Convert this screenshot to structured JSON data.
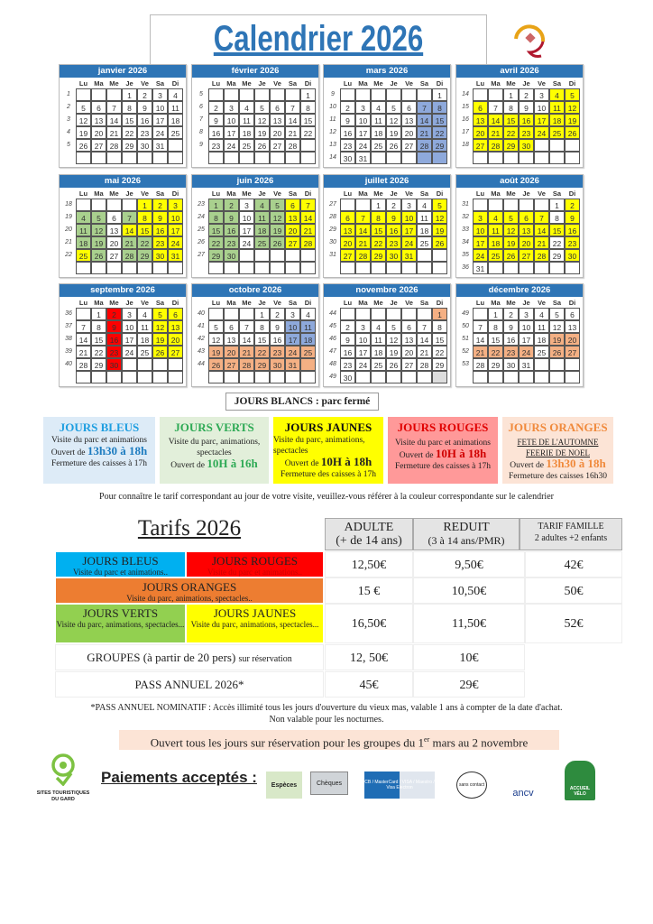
{
  "title": "Calendrier 2026",
  "dow": [
    "Lu",
    "Ma",
    "Me",
    "Je",
    "Ve",
    "Sa",
    "Di"
  ],
  "colors": {
    "w": "#ffffff",
    "b": "#8EA9DB",
    "g": "#A9D08E",
    "y": "#FFFF00",
    "r": "#FF0000",
    "o": "#F4B084",
    "l": "#DDDDDD",
    "header": "#2E75B6"
  },
  "months": [
    {
      "name": "janvier 2026",
      "weeks": [
        [
          "1",
          [
            "",
            "",
            "",
            "1",
            "2",
            "3",
            "4"
          ],
          "wwwwwww"
        ],
        [
          "2",
          [
            "5",
            "6",
            "7",
            "8",
            "9",
            "10",
            "11"
          ],
          "wwwwwww"
        ],
        [
          "3",
          [
            "12",
            "13",
            "14",
            "15",
            "16",
            "17",
            "18"
          ],
          "wwwwwww"
        ],
        [
          "4",
          [
            "19",
            "20",
            "21",
            "22",
            "23",
            "24",
            "25"
          ],
          "wwwwwww"
        ],
        [
          "5",
          [
            "26",
            "27",
            "28",
            "29",
            "30",
            "31",
            ""
          ],
          "wwwwwww"
        ],
        [
          "",
          [
            "",
            "",
            "",
            "",
            "",
            "",
            ""
          ],
          "wwwwwww"
        ]
      ]
    },
    {
      "name": "février 2026",
      "weeks": [
        [
          "5",
          [
            "",
            "",
            "",
            "",
            "",
            "",
            "1"
          ],
          "wwwwwww"
        ],
        [
          "6",
          [
            "2",
            "3",
            "4",
            "5",
            "6",
            "7",
            "8"
          ],
          "wwwwwww"
        ],
        [
          "7",
          [
            "9",
            "10",
            "11",
            "12",
            "13",
            "14",
            "15"
          ],
          "wwwwwww"
        ],
        [
          "8",
          [
            "16",
            "17",
            "18",
            "19",
            "20",
            "21",
            "22"
          ],
          "wwwwwww"
        ],
        [
          "9",
          [
            "23",
            "24",
            "25",
            "26",
            "27",
            "28",
            ""
          ],
          "wwwwwww"
        ],
        [
          "",
          [
            "",
            "",
            "",
            "",
            "",
            "",
            ""
          ],
          "wwwwwww"
        ]
      ]
    },
    {
      "name": "mars 2026",
      "weeks": [
        [
          "9",
          [
            "",
            "",
            "",
            "",
            "",
            "",
            "1"
          ],
          "wwwwwww"
        ],
        [
          "10",
          [
            "2",
            "3",
            "4",
            "5",
            "6",
            "7",
            "8"
          ],
          "wwwwwbb"
        ],
        [
          "11",
          [
            "9",
            "10",
            "11",
            "12",
            "13",
            "14",
            "15"
          ],
          "wwwwwbb"
        ],
        [
          "12",
          [
            "16",
            "17",
            "18",
            "19",
            "20",
            "21",
            "22"
          ],
          "wwwwwbb"
        ],
        [
          "13",
          [
            "23",
            "24",
            "25",
            "26",
            "27",
            "28",
            "29"
          ],
          "wwwwwbb"
        ],
        [
          "14",
          [
            "30",
            "31",
            "",
            "",
            "",
            "",
            ""
          ],
          "wwwwwbb"
        ]
      ]
    },
    {
      "name": "avril 2026",
      "weeks": [
        [
          "14",
          [
            "",
            "",
            "1",
            "2",
            "3",
            "4",
            "5"
          ],
          "wwwwwyy"
        ],
        [
          "15",
          [
            "6",
            "7",
            "8",
            "9",
            "10",
            "11",
            "12"
          ],
          "ywwwwyy"
        ],
        [
          "16",
          [
            "13",
            "14",
            "15",
            "16",
            "17",
            "18",
            "19"
          ],
          "yyyyyyy"
        ],
        [
          "17",
          [
            "20",
            "21",
            "22",
            "23",
            "24",
            "25",
            "26"
          ],
          "yyyyyyy"
        ],
        [
          "18",
          [
            "27",
            "28",
            "29",
            "30",
            "",
            "",
            ""
          ],
          "yyyywww"
        ],
        [
          "",
          [
            "",
            "",
            "",
            "",
            "",
            "",
            ""
          ],
          "wwwwwww"
        ]
      ]
    },
    {
      "name": "mai 2026",
      "weeks": [
        [
          "18",
          [
            "",
            "",
            "",
            "",
            "1",
            "2",
            "3"
          ],
          "wwwwyyy"
        ],
        [
          "19",
          [
            "4",
            "5",
            "6",
            "7",
            "8",
            "9",
            "10"
          ],
          "ggwgyyy"
        ],
        [
          "20",
          [
            "11",
            "12",
            "13",
            "14",
            "15",
            "16",
            "17"
          ],
          "ggwyyyy"
        ],
        [
          "21",
          [
            "18",
            "19",
            "20",
            "21",
            "22",
            "23",
            "24"
          ],
          "ggwggyy"
        ],
        [
          "22",
          [
            "25",
            "26",
            "27",
            "28",
            "29",
            "30",
            "31"
          ],
          "ygwggyy"
        ],
        [
          "",
          [
            "",
            "",
            "",
            "",
            "",
            "",
            ""
          ],
          "wwwwwww"
        ]
      ]
    },
    {
      "name": "juin 2026",
      "weeks": [
        [
          "23",
          [
            "1",
            "2",
            "3",
            "4",
            "5",
            "6",
            "7"
          ],
          "ggwggyy"
        ],
        [
          "24",
          [
            "8",
            "9",
            "10",
            "11",
            "12",
            "13",
            "14"
          ],
          "ggwggyy"
        ],
        [
          "25",
          [
            "15",
            "16",
            "17",
            "18",
            "19",
            "20",
            "21"
          ],
          "ggwggyy"
        ],
        [
          "26",
          [
            "22",
            "23",
            "24",
            "25",
            "26",
            "27",
            "28"
          ],
          "ggwggyy"
        ],
        [
          "27",
          [
            "29",
            "30",
            "",
            "",
            "",
            "",
            ""
          ],
          "ggwwwww"
        ],
        [
          "",
          [
            "",
            "",
            "",
            "",
            "",
            "",
            ""
          ],
          "wwwwwww"
        ]
      ]
    },
    {
      "name": "juillet 2026",
      "weeks": [
        [
          "27",
          [
            "",
            "",
            "1",
            "2",
            "3",
            "4",
            "5"
          ],
          "wwwwwwy"
        ],
        [
          "28",
          [
            "6",
            "7",
            "8",
            "9",
            "10",
            "11",
            "12"
          ],
          "yyyyywy"
        ],
        [
          "29",
          [
            "13",
            "14",
            "15",
            "16",
            "17",
            "18",
            "19"
          ],
          "yyyyywy"
        ],
        [
          "30",
          [
            "20",
            "21",
            "22",
            "23",
            "24",
            "25",
            "26"
          ],
          "yyyyywy"
        ],
        [
          "31",
          [
            "27",
            "28",
            "29",
            "30",
            "31",
            "",
            ""
          ],
          "yyyyyww"
        ],
        [
          "",
          [
            "",
            "",
            "",
            "",
            "",
            "",
            ""
          ],
          "wwwwwww"
        ]
      ]
    },
    {
      "name": "août 2026",
      "weeks": [
        [
          "31",
          [
            "",
            "",
            "",
            "",
            "",
            "1",
            "2"
          ],
          "wwwwwwy"
        ],
        [
          "32",
          [
            "3",
            "4",
            "5",
            "6",
            "7",
            "8",
            "9"
          ],
          "yyyyywy"
        ],
        [
          "33",
          [
            "10",
            "11",
            "12",
            "13",
            "14",
            "15",
            "16"
          ],
          "yyyyyyy"
        ],
        [
          "34",
          [
            "17",
            "18",
            "19",
            "20",
            "21",
            "22",
            "23"
          ],
          "yyyyywy"
        ],
        [
          "35",
          [
            "24",
            "25",
            "26",
            "27",
            "28",
            "29",
            "30"
          ],
          "yyyyywy"
        ],
        [
          "36",
          [
            "31",
            "",
            "",
            "",
            "",
            "",
            ""
          ],
          "wwwwwww"
        ]
      ]
    },
    {
      "name": "septembre 2026",
      "weeks": [
        [
          "36",
          [
            "",
            "1",
            "2",
            "3",
            "4",
            "5",
            "6"
          ],
          "wwrwwyy"
        ],
        [
          "37",
          [
            "7",
            "8",
            "9",
            "10",
            "11",
            "12",
            "13"
          ],
          "wwrwwyy"
        ],
        [
          "38",
          [
            "14",
            "15",
            "16",
            "17",
            "18",
            "19",
            "20"
          ],
          "wwrwwyy"
        ],
        [
          "39",
          [
            "21",
            "22",
            "23",
            "24",
            "25",
            "26",
            "27"
          ],
          "wwrwwyy"
        ],
        [
          "40",
          [
            "28",
            "29",
            "30",
            "",
            "",
            "",
            ""
          ],
          "wwrwwww"
        ],
        [
          "",
          [
            "",
            "",
            "",
            "",
            "",
            "",
            ""
          ],
          "wwwwwww"
        ]
      ]
    },
    {
      "name": "octobre 2026",
      "weeks": [
        [
          "40",
          [
            "",
            "",
            "",
            "1",
            "2",
            "3",
            "4"
          ],
          "wwwwwww"
        ],
        [
          "41",
          [
            "5",
            "6",
            "7",
            "8",
            "9",
            "10",
            "11"
          ],
          "wwwwwbb"
        ],
        [
          "42",
          [
            "12",
            "13",
            "14",
            "15",
            "16",
            "17",
            "18"
          ],
          "wwwwwbb"
        ],
        [
          "43",
          [
            "19",
            "20",
            "21",
            "22",
            "23",
            "24",
            "25"
          ],
          "ooooooo"
        ],
        [
          "44",
          [
            "26",
            "27",
            "28",
            "29",
            "30",
            "31",
            ""
          ],
          "ooooooo"
        ],
        [
          "",
          [
            "",
            "",
            "",
            "",
            "",
            "",
            ""
          ],
          "wwwwwww"
        ]
      ]
    },
    {
      "name": "novembre 2026",
      "weeks": [
        [
          "44",
          [
            "",
            "",
            "",
            "",
            "",
            "",
            "1"
          ],
          "wwwwwwo"
        ],
        [
          "45",
          [
            "2",
            "3",
            "4",
            "5",
            "6",
            "7",
            "8"
          ],
          "wwwwwww"
        ],
        [
          "46",
          [
            "9",
            "10",
            "11",
            "12",
            "13",
            "14",
            "15"
          ],
          "wwwwwww"
        ],
        [
          "47",
          [
            "16",
            "17",
            "18",
            "19",
            "20",
            "21",
            "22"
          ],
          "wwwwwww"
        ],
        [
          "48",
          [
            "23",
            "24",
            "25",
            "26",
            "27",
            "28",
            "29"
          ],
          "wwwwwww"
        ],
        [
          "49",
          [
            "30",
            "",
            "",
            "",
            "",
            "",
            ""
          ],
          "wwwwwwl"
        ]
      ]
    },
    {
      "name": "décembre 2026",
      "weeks": [
        [
          "49",
          [
            "",
            "1",
            "2",
            "3",
            "4",
            "5",
            "6"
          ],
          "wwwwwww"
        ],
        [
          "50",
          [
            "7",
            "8",
            "9",
            "10",
            "11",
            "12",
            "13"
          ],
          "wwwwwww"
        ],
        [
          "51",
          [
            "14",
            "15",
            "16",
            "17",
            "18",
            "19",
            "20"
          ],
          "wwwwwoo"
        ],
        [
          "52",
          [
            "21",
            "22",
            "23",
            "24",
            "25",
            "26",
            "27"
          ],
          "oooowoo"
        ],
        [
          "53",
          [
            "28",
            "29",
            "30",
            "31",
            "",
            "",
            ""
          ],
          "wwwwwww"
        ],
        [
          "",
          [
            "",
            "",
            "",
            "",
            "",
            "",
            ""
          ],
          "wwwwwww"
        ]
      ]
    }
  ],
  "legend": {
    "blancs": "JOURS BLANCS : parc fermé",
    "bleus": {
      "title": "JOURS BLEUS",
      "l1": "Visite du parc et animations",
      "open_prefix": "Ouvert de ",
      "hours": "13h30 à 18h",
      "close": "Fermeture des caisses à 17h"
    },
    "verts": {
      "title": "JOURS VERTS",
      "l1": "Visite du parc, animations, spectacles",
      "open_prefix": "Ouvert de ",
      "hours": "10H à 16h"
    },
    "jaunes": {
      "title": "JOURS JAUNES",
      "l1": "Visite du parc, animations, spectacles",
      "open_prefix": "Ouvert de ",
      "hours": "10H à 18h",
      "close": "Fermeture des caisses à 17h"
    },
    "rouges": {
      "title": "JOURS ROUGES",
      "l1": "Visite du parc et animations",
      "open_prefix": "Ouvert de ",
      "hours": "10H à 18h",
      "close": "Fermeture des caisses à 17h"
    },
    "oranges": {
      "title": "JOURS ORANGES",
      "l1": "FETE DE L'AUTOMNE",
      "l2": "FEERIE DE NOEL",
      "open_prefix": "Ouvert de ",
      "hours": "13h30 à 18h",
      "close": "Fermeture des caisses 16h30"
    }
  },
  "info": "Pour connaître le tarif correspondant au jour de votre visite, veuillez-vous référer à la couleur correspondante sur le calendrier",
  "tarifs": {
    "title": "Tarifs 2026",
    "headers": [
      {
        "l1": "ADULTE",
        "l2": "(+ de 14 ans)"
      },
      {
        "l1": "REDUIT",
        "l2": "(3 à 14 ans/PMR)"
      },
      {
        "l1": "TARIF FAMILLE",
        "l2": "2 adultes +2 enfants"
      }
    ],
    "cats": {
      "bleus": {
        "t": "JOURS BLEUS",
        "s": "Visite du parc et animations.."
      },
      "rouges": {
        "t": "JOURS ROUGES",
        "s": "Visite du parc et animations.."
      },
      "oranges": {
        "t": "JOURS ORANGES",
        "s": "Visite du parc, animations, spectacles.."
      },
      "verts": {
        "t": "JOURS VERTS",
        "s": "Visite du parc, animations, spectacles..."
      },
      "jaunes": {
        "t": "JOURS JAUNES",
        "s": "Visite du parc, animations, spectacles..."
      },
      "groupes": {
        "t": "GROUPES (à partir de 20 pers)",
        "s": "sur réservation"
      },
      "pass": {
        "t": "PASS ANNUEL 2026*"
      }
    },
    "rows": [
      {
        "adulte": "12,50€",
        "reduit": "9,50€",
        "famille": "42€"
      },
      {
        "adulte": "15 €",
        "reduit": "10,50€",
        "famille": "50€"
      },
      {
        "adulte": "16,50€",
        "reduit": "11,50€",
        "famille": "52€"
      },
      {
        "adulte": "12, 50€",
        "reduit": "10€"
      },
      {
        "adulte": "45€",
        "reduit": "29€"
      }
    ]
  },
  "pass_note": {
    "l1": "*PASS ANNUEL NOMINATIF : Accès illimité tous les jours d'ouverture du vieux mas, valable 1 ans à compter de la date d'achat.",
    "l2": "Non valable pour les nocturnes."
  },
  "groupes_banner": {
    "pre": "Ouvert tous les jours sur réservation pour les groupes du 1",
    "sup": "er",
    "post": " mars au 2 novembre"
  },
  "footer": {
    "logo_text": "SITES TOURISTIQUES DU GARD",
    "paiements": "Paiements acceptés :",
    "methods": [
      "Espèces",
      "Chèques",
      "CB / MasterCard / VISA / Maestro / Visa Electron",
      "sans contact",
      "ancv",
      "ACCUEIL VÉLO"
    ]
  }
}
